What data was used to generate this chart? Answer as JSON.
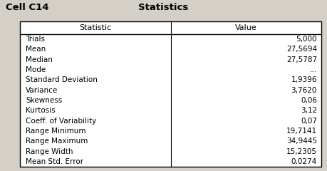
{
  "title": "Statistics",
  "cell_label": "Cell C14",
  "col_headers": [
    "Statistic",
    "Value"
  ],
  "rows": [
    [
      "Trials",
      "5,000"
    ],
    [
      "Mean",
      "27,5694"
    ],
    [
      "Median",
      "27,5787"
    ],
    [
      "Mode",
      "..."
    ],
    [
      "Standard Deviation",
      "1,9396"
    ],
    [
      "Variance",
      "3,7620"
    ],
    [
      "Skewness",
      "0,06"
    ],
    [
      "Kurtosis",
      "3,12"
    ],
    [
      "Coeff. of Variability",
      "0,07"
    ],
    [
      "Range Minimum",
      "19,7141"
    ],
    [
      "Range Maximum",
      "34,9445"
    ],
    [
      "Range Width",
      "15,2305"
    ],
    [
      "Mean Std. Error",
      "0,0274"
    ]
  ],
  "bg_color": "#d4d0c8",
  "table_bg": "#ffffff",
  "border_color": "#000000",
  "text_color": "#000000",
  "font_size": 7.5,
  "header_font_size": 8.0,
  "title_font_size": 9.5,
  "fig_width": 4.59,
  "fig_height": 2.4,
  "dpi": 100
}
